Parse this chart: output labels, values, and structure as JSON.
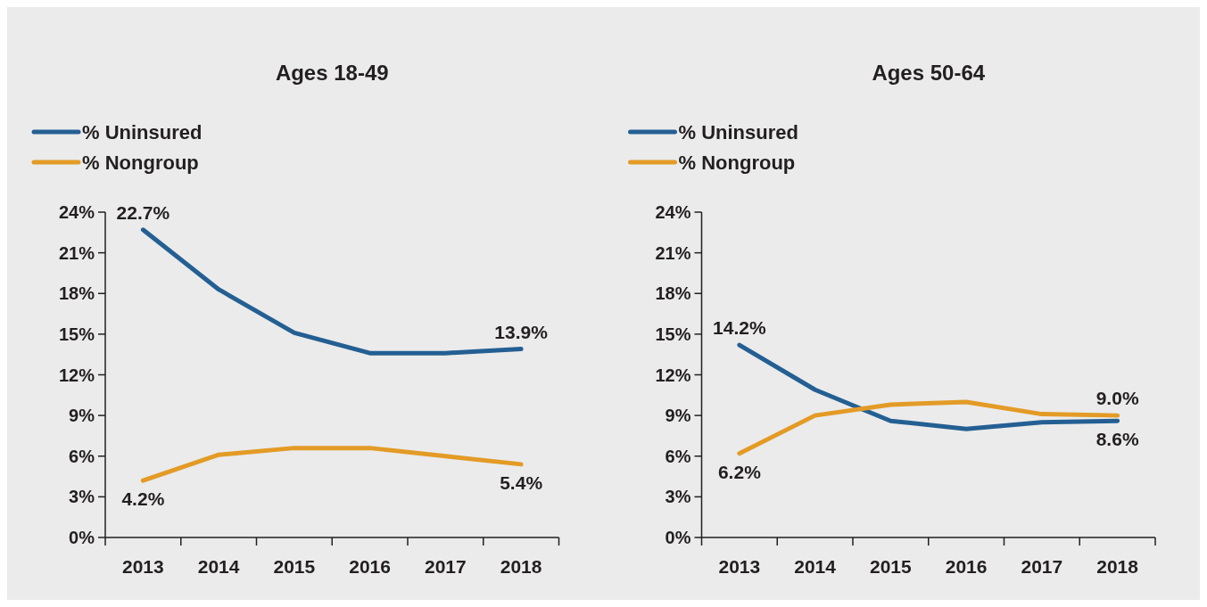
{
  "chart_data": [
    {
      "type": "line",
      "title": "Ages 18-49",
      "categories": [
        "2013",
        "2014",
        "2015",
        "2016",
        "2017",
        "2018"
      ],
      "ylim": [
        0,
        24
      ],
      "yticks": [
        {
          "value": 0,
          "label": "0%"
        },
        {
          "value": 3,
          "label": "3%"
        },
        {
          "value": 6,
          "label": "6%"
        },
        {
          "value": 9,
          "label": "9%"
        },
        {
          "value": 12,
          "label": "12%"
        },
        {
          "value": 15,
          "label": "15%"
        },
        {
          "value": 18,
          "label": "18%"
        },
        {
          "value": 21,
          "label": "21%"
        },
        {
          "value": 24,
          "label": "24%"
        }
      ],
      "legend": "top left",
      "grid": false,
      "series": [
        {
          "name": "% Uninsured",
          "color": "#245f93",
          "values": [
            22.7,
            18.3,
            15.1,
            13.6,
            13.6,
            13.9
          ],
          "value_labels": [
            "22.7%",
            null,
            null,
            null,
            null,
            "13.9%"
          ]
        },
        {
          "name": "% Nongroup",
          "color": "#e39b26",
          "values": [
            4.2,
            6.1,
            6.6,
            6.6,
            6.0,
            5.4
          ],
          "value_labels": [
            "4.2%",
            null,
            null,
            null,
            null,
            "5.4%"
          ]
        }
      ]
    },
    {
      "type": "line",
      "title": "Ages 50-64",
      "categories": [
        "2013",
        "2014",
        "2015",
        "2016",
        "2017",
        "2018"
      ],
      "ylim": [
        0,
        24
      ],
      "yticks": [
        {
          "value": 0,
          "label": "0%"
        },
        {
          "value": 3,
          "label": "3%"
        },
        {
          "value": 6,
          "label": "6%"
        },
        {
          "value": 9,
          "label": "9%"
        },
        {
          "value": 12,
          "label": "12%"
        },
        {
          "value": 15,
          "label": "15%"
        },
        {
          "value": 18,
          "label": "18%"
        },
        {
          "value": 21,
          "label": "21%"
        },
        {
          "value": 24,
          "label": "24%"
        }
      ],
      "legend": "top left",
      "grid": false,
      "series": [
        {
          "name": "% Uninsured",
          "color": "#245f93",
          "values": [
            14.2,
            10.9,
            8.6,
            8.0,
            8.5,
            8.6
          ],
          "value_labels": [
            "14.2%",
            null,
            null,
            null,
            null,
            "8.6%"
          ]
        },
        {
          "name": "% Nongroup",
          "color": "#e39b26",
          "values": [
            6.2,
            9.0,
            9.8,
            10.0,
            9.1,
            9.0
          ],
          "value_labels": [
            "6.2%",
            null,
            null,
            null,
            null,
            "9.0%"
          ]
        }
      ]
    }
  ]
}
